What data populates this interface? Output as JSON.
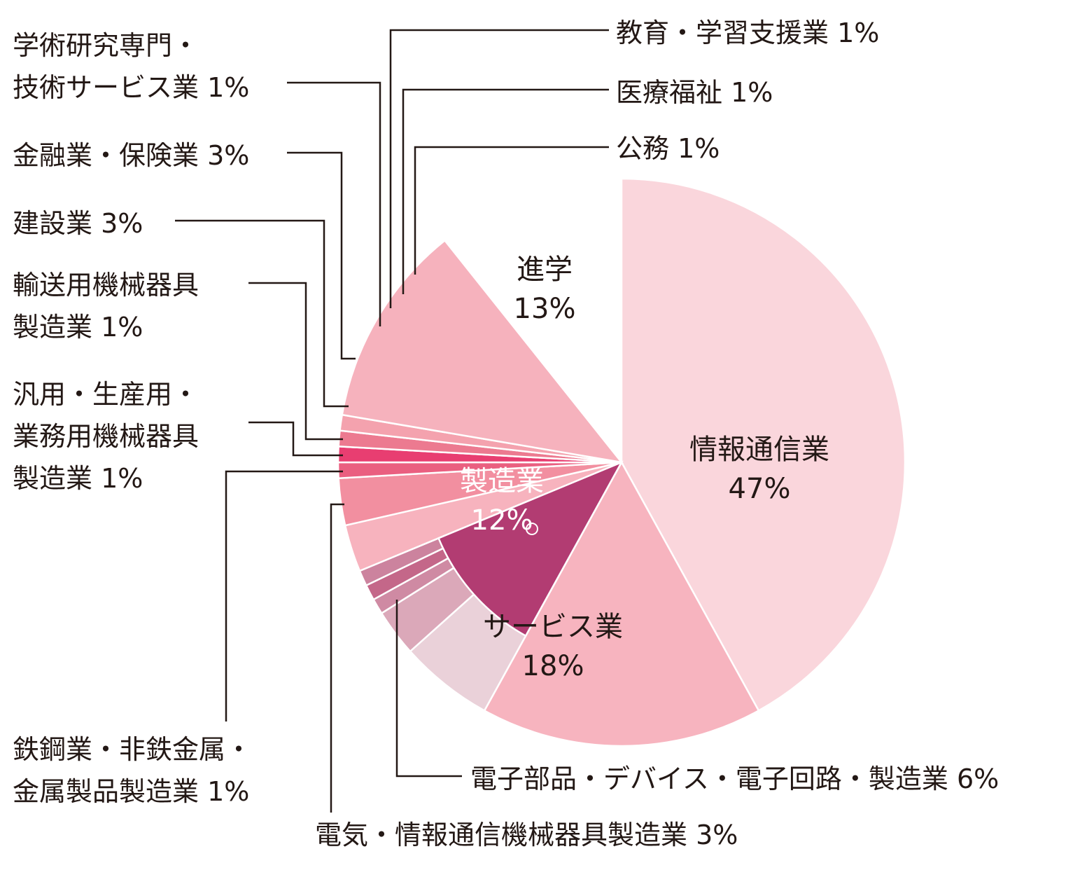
{
  "chart_data": {
    "type": "pie",
    "main": [
      {
        "label": "情報通信業",
        "percent_text": "47%",
        "value": 47,
        "color": "#fad6dc"
      },
      {
        "label": "サービス業",
        "percent_text": "18%",
        "value": 18,
        "color": "#f7b4bf"
      },
      {
        "label": "製造業",
        "percent_text": "12%",
        "value": 12,
        "color": "#b23c72"
      },
      {
        "label": "進学",
        "percent_text": "13%",
        "value": 13,
        "color": "#f6b2bd"
      }
    ],
    "manufacturing_breakdown": [
      {
        "label": "電子部品・デバイス・電子回路・製造業",
        "percent_text": "6%",
        "value": 6,
        "color": "#ead1d9"
      },
      {
        "label": "電気・情報通信機械器具製造業",
        "percent_text": "3%",
        "value": 3,
        "color": "#dba8b9"
      },
      {
        "label": "鉄鋼業・非鉄金属・金属製品製造業",
        "percent_text": "1%",
        "value": 1,
        "color": "#cf8aa3"
      },
      {
        "label": "汎用・生産用・業務用機械器具製造業",
        "percent_text": "1%",
        "value": 1,
        "color": "#c46789"
      },
      {
        "label": "輸送用機械器具製造業",
        "percent_text": "1%",
        "value": 1,
        "color": "#cc839e"
      }
    ],
    "other": [
      {
        "label": "建設業",
        "percent_text": "3%",
        "value": 3,
        "color": "#f7b3be"
      },
      {
        "label": "金融業・保険業",
        "percent_text": "3%",
        "value": 3,
        "color": "#f28fa0"
      },
      {
        "label": "学術研究専門・技術サービス業",
        "percent_text": "1%",
        "value": 1,
        "color": "#ea5f80"
      },
      {
        "label": "教育・学習支援業",
        "percent_text": "1%",
        "value": 1,
        "color": "#e83e71"
      },
      {
        "label": "医療福祉",
        "percent_text": "1%",
        "value": 1,
        "color": "#ec7a90"
      },
      {
        "label": "公務",
        "percent_text": "1%",
        "value": 1,
        "color": "#f4a2ae"
      }
    ]
  }
}
